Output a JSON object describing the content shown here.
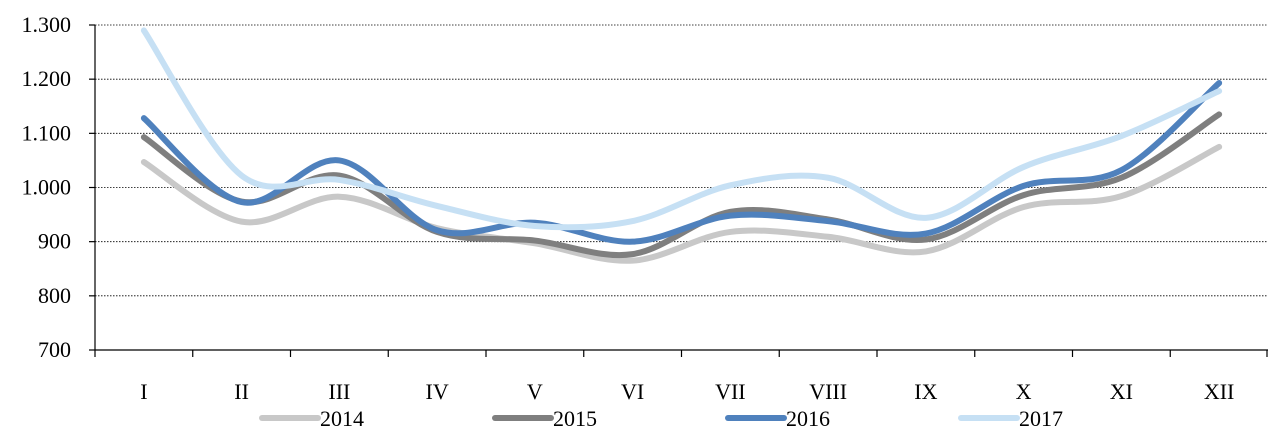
{
  "chart_data": {
    "type": "line",
    "title": "",
    "xlabel": "",
    "ylabel": "",
    "categories": [
      "I",
      "II",
      "III",
      "IV",
      "V",
      "VI",
      "VII",
      "VIII",
      "IX",
      "X",
      "XI",
      "XII"
    ],
    "y_ticks": [
      700,
      800,
      900,
      1000,
      1100,
      1200,
      1300
    ],
    "y_tick_labels": [
      "700",
      "800",
      "900",
      "1.000",
      "1.100",
      "1.200",
      "1.300"
    ],
    "ylim": [
      700,
      1300
    ],
    "grid": true,
    "smooth": true,
    "legend_position": "bottom",
    "series": [
      {
        "name": "2014",
        "color": "#c8c8c8",
        "values": [
          1047,
          937,
          983,
          925,
          897,
          865,
          918,
          909,
          882,
          964,
          984,
          1075
        ]
      },
      {
        "name": "2015",
        "color": "#7f7f7f",
        "values": [
          1093,
          974,
          1022,
          918,
          902,
          877,
          955,
          941,
          904,
          986,
          1018,
          1135
        ]
      },
      {
        "name": "2016",
        "color": "#4f81bd",
        "values": [
          1128,
          973,
          1050,
          921,
          935,
          900,
          948,
          938,
          915,
          1003,
          1032,
          1193
        ]
      },
      {
        "name": "2017",
        "color": "#c6e0f4",
        "values": [
          1290,
          1022,
          1014,
          966,
          929,
          938,
          1004,
          1018,
          944,
          1038,
          1095,
          1178
        ]
      }
    ]
  }
}
